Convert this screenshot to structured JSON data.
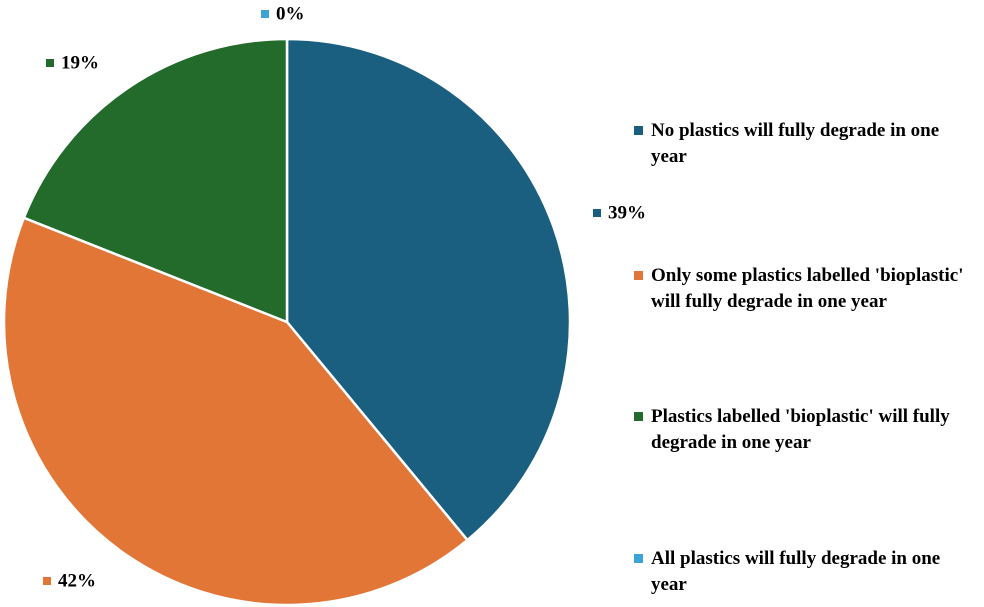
{
  "chart_data": {
    "type": "pie",
    "title": "",
    "legend_position": "right",
    "slices": [
      {
        "label": "No plastics will fully degrade in one year",
        "value": 39,
        "value_label": "39%",
        "color": "#1a5e80"
      },
      {
        "label": "Only some plastics labelled 'bioplastic' will fully degrade in one year",
        "value": 42,
        "value_label": "42%",
        "color": "#e27636"
      },
      {
        "label": "Plastics labelled 'bioplastic' will fully degrade in one year",
        "value": 19,
        "value_label": "19%",
        "color": "#226b2a"
      },
      {
        "label": "All plastics will fully degrade in one year",
        "value": 0,
        "value_label": "0%",
        "color": "#3ba3d6"
      }
    ]
  }
}
